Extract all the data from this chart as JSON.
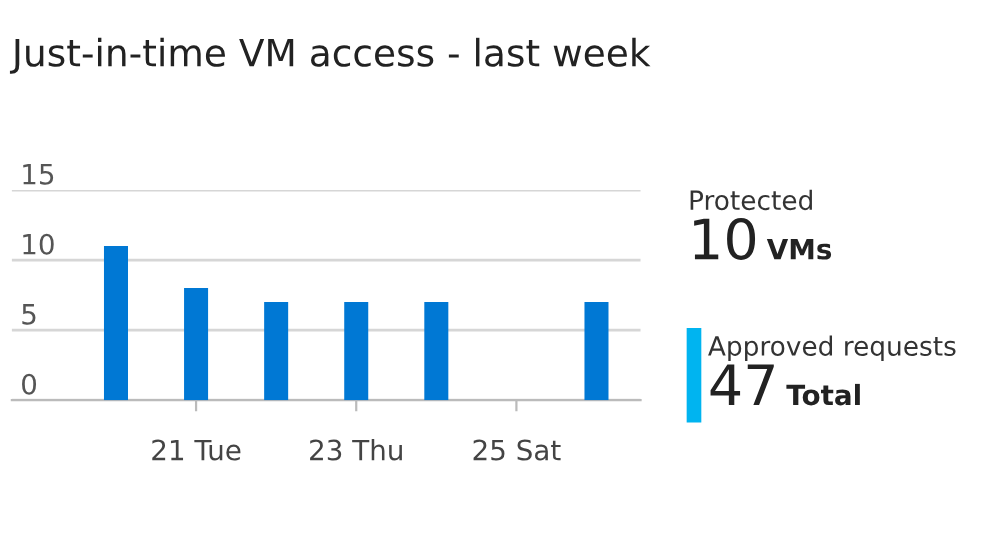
{
  "chart_data": {
    "type": "bar",
    "title": "Just-in-time VM access - last week",
    "categories": [
      null,
      "21 Tue",
      null,
      "23 Thu",
      null,
      "25 Sat",
      null
    ],
    "values": [
      11,
      8,
      7,
      7,
      7,
      0,
      7
    ],
    "color": "#0078d4",
    "ylim": [
      0,
      15
    ],
    "yticks": [
      0,
      5,
      10,
      15
    ],
    "grid": "y",
    "annotations": [
      "Protected",
      "10 VMs",
      "Approved requests",
      "47 Total"
    ]
  }
}
